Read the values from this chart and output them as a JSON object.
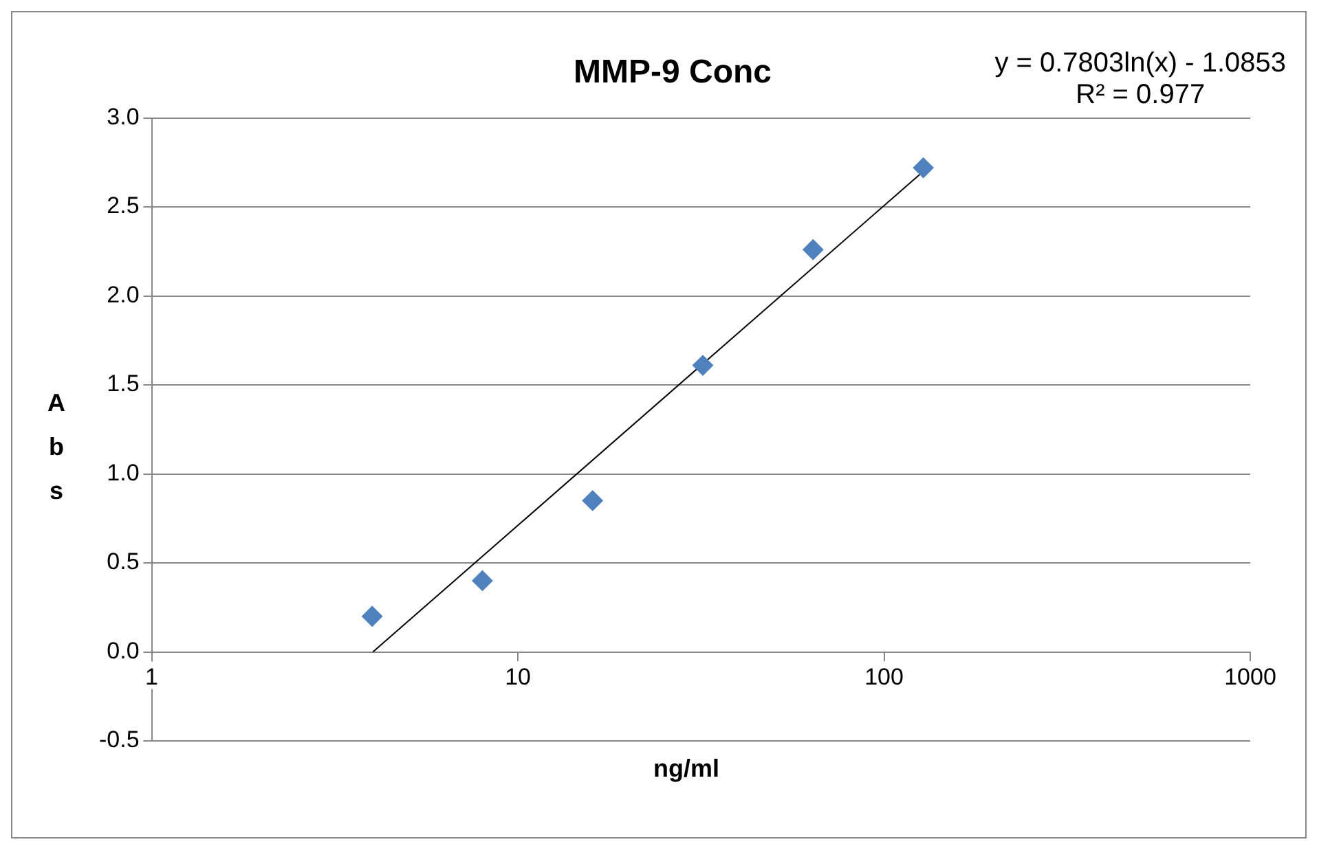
{
  "chart_data": {
    "type": "scatter",
    "title": "MMP-9 Conc",
    "xlabel": "ng/ml",
    "ylabel": "Abs",
    "annotations": [
      "y = 0.7803ln(x) - 1.0853",
      "R² = 0.977"
    ],
    "log": "x",
    "grid": "y",
    "legend": false,
    "marker": "diamond",
    "xlim": [
      1,
      1000
    ],
    "xticks": [
      1,
      10,
      100,
      1000
    ],
    "ylim": [
      -0.5,
      3
    ],
    "yticks": [
      {
        "value": -0.5,
        "label": "-0.5"
      },
      {
        "value": 0,
        "label": "0.0"
      },
      {
        "value": 0.5,
        "label": "0.5"
      },
      {
        "value": 1,
        "label": "1.0"
      },
      {
        "value": 1.5,
        "label": "1.5"
      },
      {
        "value": 2,
        "label": "2.0"
      },
      {
        "value": 2.5,
        "label": "2.5"
      },
      {
        "value": 3,
        "label": "3.0"
      }
    ],
    "series": [
      {
        "color": "#4f81bd",
        "x": [
          4,
          8,
          16,
          32,
          64,
          128
        ],
        "values": [
          0.2,
          0.4,
          0.85,
          1.61,
          2.26,
          2.72
        ]
      },
      {
        "type": "line",
        "color": "#000000",
        "marker": "none",
        "line_style": "solid",
        "x": [
          4.02,
          128
        ],
        "values": [
          0,
          2.7
        ]
      }
    ]
  }
}
